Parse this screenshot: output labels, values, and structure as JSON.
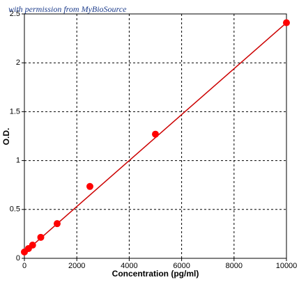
{
  "chart_data": {
    "type": "scatter",
    "watermark": "with permission from MyBioSource",
    "xlabel": "Concentration (pg/ml)",
    "ylabel": "O.D.",
    "xlim": [
      0,
      10000
    ],
    "ylim": [
      0,
      2.5
    ],
    "xticks": [
      0,
      2000,
      4000,
      6000,
      8000,
      10000
    ],
    "yticks": [
      0,
      0.5,
      1,
      1.5,
      2,
      2.5
    ],
    "grid": true,
    "series": [
      {
        "color": "#ff0000",
        "x": [
          0,
          156,
          312,
          625,
          1250,
          2500,
          5000,
          10000
        ],
        "values": [
          0.065,
          0.1,
          0.135,
          0.215,
          0.355,
          0.735,
          1.27,
          2.41
        ]
      }
    ],
    "fit": {
      "color": "#cc0000",
      "x": [
        0,
        10000
      ],
      "values": [
        0.06,
        2.41
      ]
    }
  }
}
